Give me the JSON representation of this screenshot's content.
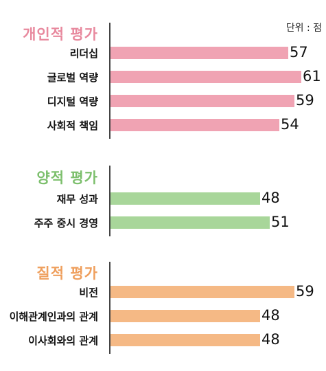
{
  "unit_label": "단위 : 점",
  "chart_data": {
    "type": "bar",
    "orientation": "horizontal",
    "xlim": [
      0,
      63
    ],
    "groups": [
      {
        "title": "개인적 평가",
        "color": "#f0a3b3",
        "title_color": "#e8899e",
        "categories": [
          "리더십",
          "글로벌 역량",
          "디지털 역량",
          "사회적 책임"
        ],
        "values": [
          57,
          61,
          59,
          54
        ]
      },
      {
        "title": "양적 평가",
        "color": "#a8d69a",
        "title_color": "#7cbf6c",
        "categories": [
          "재무 성과",
          "주주 중시 경영"
        ],
        "values": [
          48,
          51
        ]
      },
      {
        "title": "질적 평가",
        "color": "#f5b985",
        "title_color": "#ef9f5d",
        "categories": [
          "비전",
          "이해관계인과의 관계",
          "이사회와의 관계"
        ],
        "values": [
          59,
          48,
          48
        ]
      }
    ]
  }
}
